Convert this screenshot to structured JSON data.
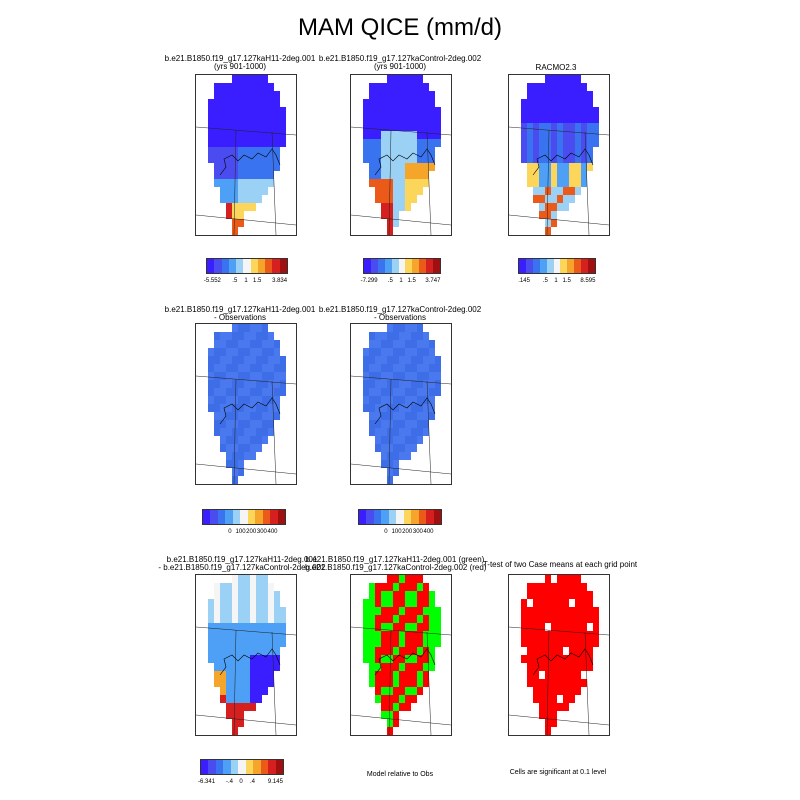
{
  "title": "MAM QICE (mm/d)",
  "colors": {
    "scale": [
      "#3a1eff",
      "#4a4cf0",
      "#3a73ef",
      "#4da0f5",
      "#9ad1f5",
      "#f5f5f5",
      "#fbd65a",
      "#f5a62a",
      "#ec5a1a",
      "#d62020",
      "#a01010"
    ],
    "ice_blue": "#3d6ee8",
    "sig_red": "#ff0000",
    "sig_green": "#00ff00"
  },
  "row1": {
    "p1": {
      "title1": "b.e21.B1850.f19_g17.127kaH11-2deg.001",
      "title2": "(yrs 901-1000)",
      "ticks": [
        "-5.552",
        ".5",
        "1",
        "1.5",
        "3.834"
      ]
    },
    "p2": {
      "title1": "b.e21.B1850.f19_g17.127kaControl-2deg.002",
      "title2": "(yrs 901-1000)",
      "ticks": [
        "-7.299",
        ".5",
        "1",
        "1.5",
        "3.747"
      ]
    },
    "p3": {
      "title1": "RACMO2.3",
      "ticks": [
        ".145",
        ".5",
        "1",
        "1.5",
        "8.595"
      ]
    }
  },
  "row2": {
    "p1": {
      "title1": "b.e21.B1850.f19_g17.127kaH11-2deg.001",
      "title2": "- Observations",
      "ticks": [
        "0",
        "100",
        "200",
        "300",
        "400"
      ]
    },
    "p2": {
      "title1": "b.e21.B1850.f19_g17.127kaControl-2deg.002",
      "title2": "- Observations",
      "ticks": [
        "0",
        "100",
        "200",
        "300",
        "400"
      ]
    }
  },
  "row3": {
    "p1": {
      "title1": "b.e21.B1850.f19_g17.127kaH11-2deg.001",
      "title2": "- b.e21.B1850.f19_g17.127kaControl-2deg.002",
      "ticks": [
        "-6.341",
        "-.4",
        "0",
        ".4",
        "9.145"
      ]
    },
    "p2": {
      "title1": "b.e21.B1850.f19_g17.127kaH11-2deg.001 (green)",
      "title2": "b.e21.B1850.f19_g17.127kaControl-2deg.002 (red)",
      "note": "Model relative to Obs"
    },
    "p3": {
      "title1": "T-test of two Case means at each grid point",
      "note": "Cells are significant at 0.1 level"
    }
  }
}
